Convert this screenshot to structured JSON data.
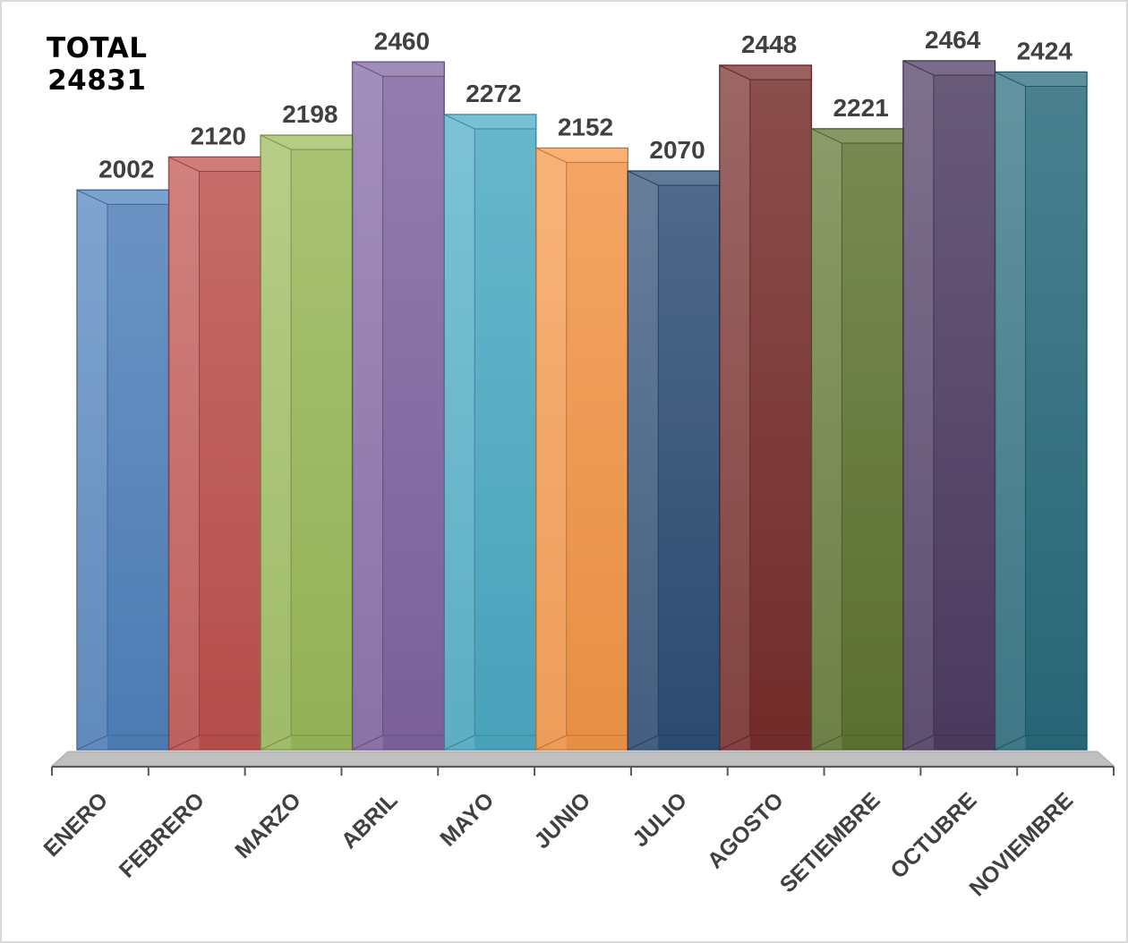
{
  "total": {
    "label": "TOTAL",
    "value": "24831"
  },
  "chart_data": {
    "type": "bar",
    "title": "",
    "xlabel": "",
    "ylabel": "",
    "categories": [
      "ENERO",
      "FEBRERO",
      "MARZO",
      "ABRIL",
      "MAYO",
      "JUNIO",
      "JULIO",
      "AGOSTO",
      "SETIEMBRE",
      "OCTUBRE",
      "NOVIEMBRE"
    ],
    "values": [
      2002,
      2120,
      2198,
      2460,
      2272,
      2152,
      2070,
      2448,
      2221,
      2464,
      2424
    ],
    "colors": [
      "#4f81bd",
      "#c0504d",
      "#9bbb59",
      "#8064a2",
      "#4bacc6",
      "#f79646",
      "#2c4d75",
      "#772c2a",
      "#5f7530",
      "#4d3b62",
      "#276a7c"
    ],
    "ylim": [
      0,
      2464
    ],
    "grid": false,
    "legend": "none",
    "data_labels": true
  }
}
